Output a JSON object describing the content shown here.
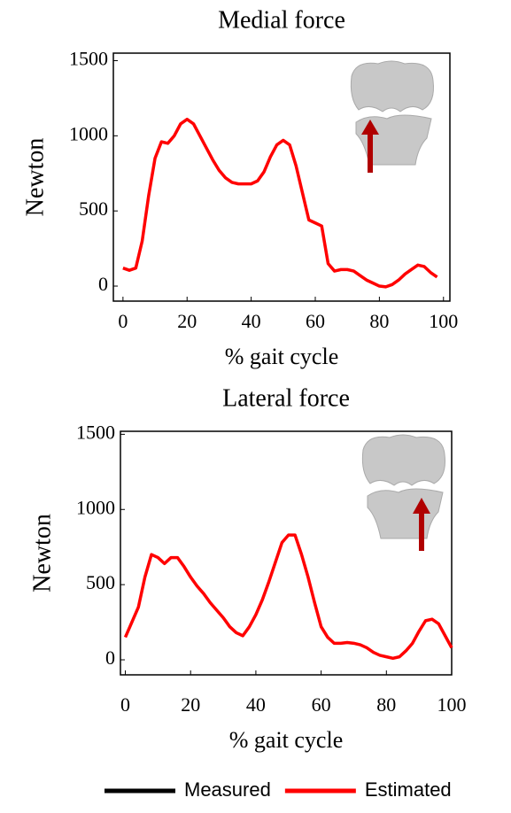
{
  "chart_data": [
    {
      "type": "line",
      "title": "Medial force",
      "xlabel": "% gait cycle",
      "ylabel": "Newton",
      "x": [
        0,
        2,
        4,
        6,
        8,
        10,
        12,
        14,
        16,
        18,
        20,
        22,
        24,
        26,
        28,
        30,
        32,
        34,
        36,
        38,
        40,
        42,
        44,
        46,
        48,
        50,
        52,
        54,
        56,
        58,
        60,
        62,
        64,
        66,
        68,
        70,
        72,
        74,
        76,
        78,
        80,
        82,
        84,
        86,
        88,
        90,
        92,
        94,
        96,
        98
      ],
      "series": [
        {
          "name": "Estimated",
          "color": "#ff0000",
          "values": [
            120,
            105,
            120,
            300,
            600,
            850,
            960,
            950,
            1000,
            1080,
            1110,
            1080,
            1000,
            920,
            840,
            770,
            720,
            690,
            680,
            680,
            680,
            700,
            760,
            860,
            940,
            970,
            940,
            800,
            620,
            440,
            420,
            400,
            150,
            100,
            110,
            110,
            100,
            70,
            40,
            20,
            0,
            -5,
            10,
            40,
            80,
            110,
            140,
            130,
            90,
            60
          ]
        }
      ],
      "xlim": [
        -3,
        102
      ],
      "ylim": [
        -100,
        1550
      ],
      "xticks": [
        0,
        20,
        40,
        60,
        80,
        100
      ],
      "yticks": [
        0,
        500,
        1000,
        1500
      ]
    },
    {
      "type": "line",
      "title": "Lateral force",
      "xlabel": "% gait cycle",
      "ylabel": "Newton",
      "x": [
        0,
        2,
        4,
        6,
        8,
        10,
        12,
        14,
        16,
        18,
        20,
        22,
        24,
        26,
        28,
        30,
        32,
        34,
        36,
        38,
        40,
        42,
        44,
        46,
        48,
        50,
        52,
        54,
        56,
        58,
        60,
        62,
        64,
        66,
        68,
        70,
        72,
        74,
        76,
        78,
        80,
        82,
        84,
        86,
        88,
        90,
        92,
        94,
        96,
        98,
        100
      ],
      "series": [
        {
          "name": "Estimated",
          "color": "#ff0000",
          "values": [
            150,
            250,
            350,
            550,
            700,
            680,
            640,
            680,
            680,
            620,
            550,
            490,
            440,
            380,
            330,
            280,
            220,
            180,
            160,
            220,
            300,
            400,
            520,
            650,
            780,
            830,
            830,
            700,
            550,
            380,
            220,
            150,
            110,
            110,
            115,
            110,
            100,
            80,
            50,
            30,
            20,
            10,
            20,
            60,
            110,
            190,
            260,
            270,
            240,
            160,
            80
          ]
        }
      ],
      "xlim": [
        -1.5,
        100
      ],
      "ylim": [
        -100,
        1520
      ],
      "xticks": [
        0,
        20,
        40,
        60,
        80,
        100
      ],
      "yticks": [
        0,
        500,
        1000,
        1500
      ]
    }
  ],
  "legend": [
    {
      "name": "Measured",
      "color": "#000000"
    },
    {
      "name": "Estimated",
      "color": "#ff0000"
    }
  ]
}
